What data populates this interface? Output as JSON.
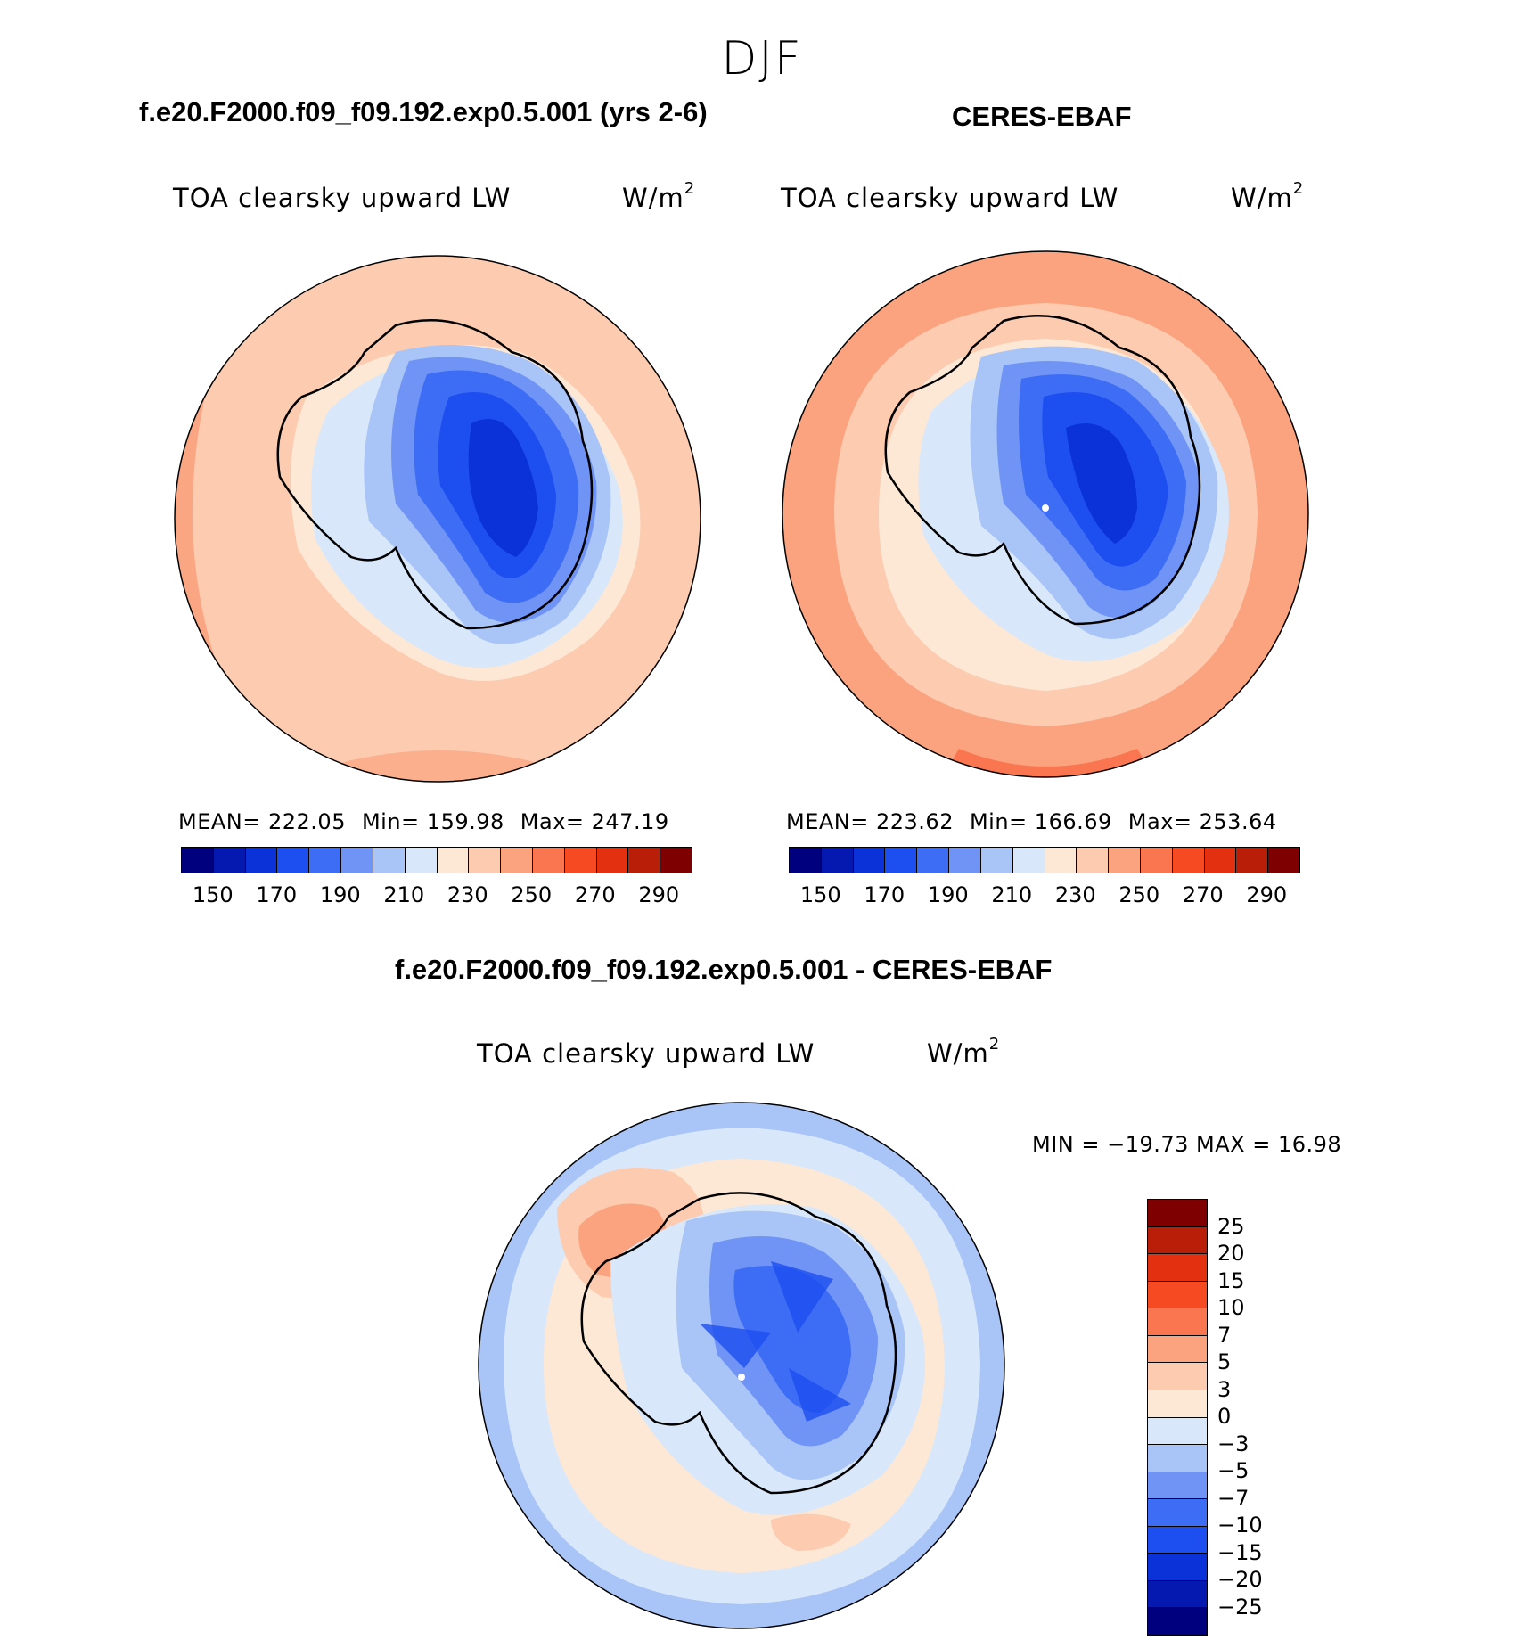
{
  "season": "DJF",
  "panels": [
    {
      "title": "f.e20.F2000.f09_f09.192.exp0.5.001 (yrs 2-6)",
      "variable": "TOA clearsky upward LW",
      "units": "W/m",
      "units_sup": "2",
      "mean": "MEAN= 222.05",
      "min": "Min= 159.98",
      "max": "Max= 247.19"
    },
    {
      "title": "CERES-EBAF",
      "variable": "TOA clearsky upward LW",
      "units": "W/m",
      "units_sup": "2",
      "mean": "MEAN= 223.62",
      "min": "Min= 166.69",
      "max": "Max= 253.64"
    }
  ],
  "diff": {
    "title": "f.e20.F2000.f09_f09.192.exp0.5.001 - CERES-EBAF",
    "variable": "TOA clearsky upward LW",
    "units": "W/m",
    "units_sup": "2",
    "minmax": "MIN = −19.73 MAX =   16.98"
  },
  "colorbar_abs": {
    "colors": [
      "#00007e",
      "#0518b0",
      "#0a32d8",
      "#1d4ef0",
      "#3e6df5",
      "#7094f5",
      "#a9c4f6",
      "#d8e8fa",
      "#fde8d6",
      "#fccbb0",
      "#fba27e",
      "#fa7650",
      "#f64a22",
      "#e23010",
      "#b81e08",
      "#7e0000"
    ],
    "labels": [
      "150",
      "170",
      "190",
      "210",
      "230",
      "250",
      "270",
      "290"
    ]
  },
  "colorbar_diff": {
    "colors": [
      "#7e0000",
      "#b81e08",
      "#e23010",
      "#f64a22",
      "#fa7650",
      "#fba27e",
      "#fccbb0",
      "#fde8d6",
      "#d8e8fa",
      "#a9c4f6",
      "#7094f5",
      "#3e6df5",
      "#1d4ef0",
      "#0a32d8",
      "#0518b0",
      "#00007e"
    ],
    "labels": [
      "25",
      "20",
      "15",
      "10",
      "7",
      "5",
      "3",
      "0",
      "−3",
      "−5",
      "−7",
      "−10",
      "−15",
      "−20",
      "−25"
    ]
  }
}
